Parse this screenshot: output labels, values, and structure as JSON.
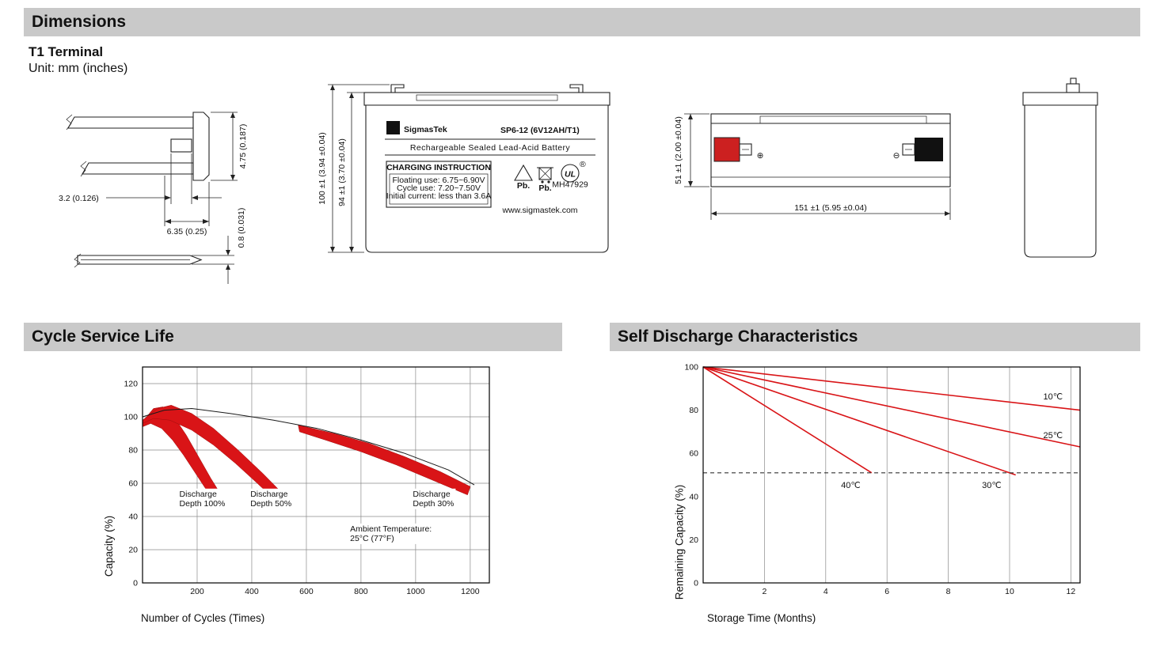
{
  "sections": {
    "dimensions": "Dimensions",
    "cycle": "Cycle Service Life",
    "discharge": "Self Discharge Characteristics"
  },
  "terminal": {
    "heading": "T1 Terminal",
    "unit": "Unit: mm (inches)",
    "dim_tab_height": "4.75 (0.187)",
    "dim_hole": "3.2 (0.126)",
    "dim_tab_width": "6.35 (0.25)",
    "dim_thickness": "0.8 (0.031)"
  },
  "front_view": {
    "dim_total_height": "100 ±1 (3.94 ±0.04)",
    "dim_case_height": "94 ±1 (3.70 ±0.04)"
  },
  "side_view": {
    "dim_height": "51 ±1 (2.00 ±0.04)",
    "dim_length": "151 ±1 (5.95 ±0.04)",
    "plus_symbol": "⊕",
    "minus_symbol": "⊖"
  },
  "battery_label": {
    "sigma": "Σ",
    "brand": "SigmasTek",
    "model": "SP6-12 (6V12AH/T1)",
    "subtitle": "Rechargeable Sealed Lead-Acid Battery",
    "charging_title": "CHARGING INSTRUCTION",
    "charging_line1": "Floating use: 6.75~6.90V",
    "charging_line2": "Cycle use: 7.20~7.50V",
    "charging_line3": "Initial current: less than 3.6A",
    "pb_recycle": "Pb.",
    "pb_bin": "Pb.",
    "ul_mark": "UL",
    "ul_reg": "®",
    "ul_code": "MH47929",
    "website": "www.sigmastek.com"
  },
  "chart_data": [
    {
      "type": "area",
      "title": "Cycle Service Life",
      "xlabel": "Number of Cycles (Times)",
      "ylabel": "Capacity (%)",
      "xlim": [
        0,
        1270
      ],
      "ylim": [
        0,
        130
      ],
      "xticks": [
        200,
        400,
        600,
        800,
        1000,
        1200
      ],
      "yticks": [
        0,
        20,
        40,
        60,
        80,
        100,
        120
      ],
      "grid": "both",
      "margin": {
        "l": 50,
        "t": 12,
        "r": 12,
        "b": 30
      },
      "bands": [
        {
          "name": "discharge-depth-100",
          "color": "#d91417",
          "points": [
            [
              0,
              97
            ],
            [
              40,
              105
            ],
            [
              75,
              106
            ],
            [
              115,
              100
            ],
            [
              160,
              89
            ],
            [
              205,
              76
            ],
            [
              250,
              63
            ],
            [
              280,
              55
            ],
            [
              265,
              50
            ],
            [
              230,
              57
            ],
            [
              190,
              67
            ],
            [
              150,
              77
            ],
            [
              110,
              86
            ],
            [
              70,
              93
            ],
            [
              30,
              96
            ],
            [
              0,
              94
            ]
          ]
        },
        {
          "name": "discharge-depth-50",
          "color": "#d91417",
          "points": [
            [
              0,
              98
            ],
            [
              55,
              105
            ],
            [
              105,
              107
            ],
            [
              180,
              102
            ],
            [
              260,
              93
            ],
            [
              350,
              80
            ],
            [
              440,
              66
            ],
            [
              500,
              56
            ],
            [
              485,
              50
            ],
            [
              420,
              60
            ],
            [
              340,
              72
            ],
            [
              260,
              83
            ],
            [
              180,
              92
            ],
            [
              100,
              98
            ],
            [
              40,
              99
            ],
            [
              0,
              96
            ]
          ]
        },
        {
          "name": "discharge-depth-30",
          "color": "#d91417",
          "points": [
            [
              570,
              95
            ],
            [
              700,
              90
            ],
            [
              830,
              84
            ],
            [
              960,
              76
            ],
            [
              1090,
              67
            ],
            [
              1200,
              58
            ],
            [
              1190,
              53
            ],
            [
              1060,
              62
            ],
            [
              930,
              71
            ],
            [
              800,
              79
            ],
            [
              670,
              86
            ],
            [
              575,
              91
            ]
          ]
        }
      ],
      "lines": [
        {
          "name": "capacity-envelope",
          "color": "#1a1a1a",
          "width": 1,
          "points": [
            [
              0,
              100
            ],
            [
              80,
              104
            ],
            [
              180,
              105
            ],
            [
              320,
              102
            ],
            [
              480,
              98
            ],
            [
              640,
              93
            ],
            [
              800,
              86
            ],
            [
              960,
              78
            ],
            [
              1120,
              68
            ],
            [
              1215,
              59
            ]
          ]
        }
      ],
      "annotations": [
        {
          "text": "Discharge\nDepth 100%",
          "x": 135,
          "y": 52,
          "bg": true,
          "size": 10.5
        },
        {
          "text": "Discharge\nDepth 50%",
          "x": 395,
          "y": 52,
          "bg": true,
          "size": 10.5
        },
        {
          "text": "Discharge\nDepth 30%",
          "x": 990,
          "y": 52,
          "bg": true,
          "size": 10.5
        },
        {
          "text": "Ambient Temperature:\n25°C (77°F)",
          "x": 760,
          "y": 31,
          "bg": true,
          "size": 10.5
        }
      ]
    },
    {
      "type": "line",
      "title": "Self Discharge Characteristics",
      "xlabel": "Storage Time (Months)",
      "ylabel": "Remaining Capacity (%)",
      "xlim": [
        0,
        12.3
      ],
      "ylim": [
        0,
        100
      ],
      "xticks": [
        2,
        4,
        6,
        8,
        10,
        12
      ],
      "yticks": [
        0,
        20,
        40,
        60,
        80,
        100
      ],
      "grid": "x",
      "margin": {
        "l": 48,
        "t": 12,
        "r": 16,
        "b": 30
      },
      "lines": [
        {
          "name": "temp-10C",
          "color": "#d91417",
          "width": 1.6,
          "points": [
            [
              0,
              100
            ],
            [
              12.3,
              80
            ]
          ]
        },
        {
          "name": "temp-25C",
          "color": "#d91417",
          "width": 1.6,
          "points": [
            [
              0,
              100
            ],
            [
              12.3,
              63
            ]
          ]
        },
        {
          "name": "temp-30C",
          "color": "#d91417",
          "width": 1.6,
          "points": [
            [
              0,
              100
            ],
            [
              10.2,
              50
            ]
          ]
        },
        {
          "name": "temp-40C",
          "color": "#d91417",
          "width": 1.6,
          "points": [
            [
              0,
              100
            ],
            [
              5.5,
              51
            ]
          ]
        },
        {
          "name": "capacity-limit",
          "color": "#333333",
          "width": 1.1,
          "dash": "5 4",
          "points": [
            [
              0,
              51
            ],
            [
              12.3,
              51
            ]
          ]
        }
      ],
      "annotations": [
        {
          "text": "10℃",
          "x": 11.1,
          "y": 85,
          "size": 11
        },
        {
          "text": "25℃",
          "x": 11.1,
          "y": 67,
          "size": 11
        },
        {
          "text": "30℃",
          "x": 9.1,
          "y": 44,
          "size": 11
        },
        {
          "text": "40℃",
          "x": 4.5,
          "y": 44,
          "size": 11
        }
      ]
    }
  ]
}
